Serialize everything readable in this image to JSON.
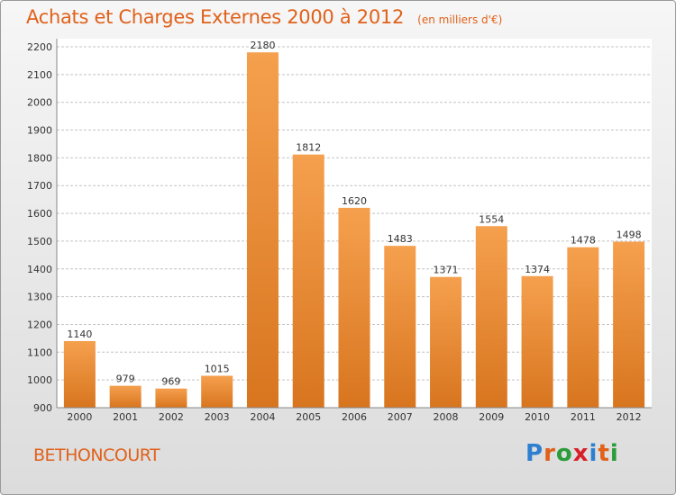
{
  "header": {
    "title": "Achats et Charges Externes 2000 à 2012",
    "unit": "(en milliers d'€)"
  },
  "footer": {
    "commune": "BETHONCOURT",
    "brand": "Proxiti",
    "brand_colors": [
      "#2f7fd1",
      "#e0611a",
      "#2a9c3a",
      "#d81f2a",
      "#2f7fd1",
      "#e0611a",
      "#2a9c3a"
    ]
  },
  "colors": {
    "bar_light": "#f5a04e",
    "bar_dark": "#d8751f",
    "title": "#e0611a",
    "grid": "#c4c4c4",
    "axis_text": "#333333"
  },
  "chart_data": {
    "type": "bar",
    "title": "Achats et Charges Externes 2000 à 2012",
    "subtitle": "(en milliers d'€)",
    "categories": [
      "2000",
      "2001",
      "2002",
      "2003",
      "2004",
      "2005",
      "2006",
      "2007",
      "2008",
      "2009",
      "2010",
      "2011",
      "2012"
    ],
    "values": [
      1140,
      979,
      969,
      1015,
      2180,
      1812,
      1620,
      1483,
      1371,
      1554,
      1374,
      1478,
      1498
    ],
    "yticks": [
      900,
      1000,
      1100,
      1200,
      1300,
      1400,
      1500,
      1600,
      1700,
      1800,
      1900,
      2000,
      2100,
      2200
    ],
    "ylim": [
      900,
      2200
    ],
    "grid": true,
    "data_labels": true
  }
}
